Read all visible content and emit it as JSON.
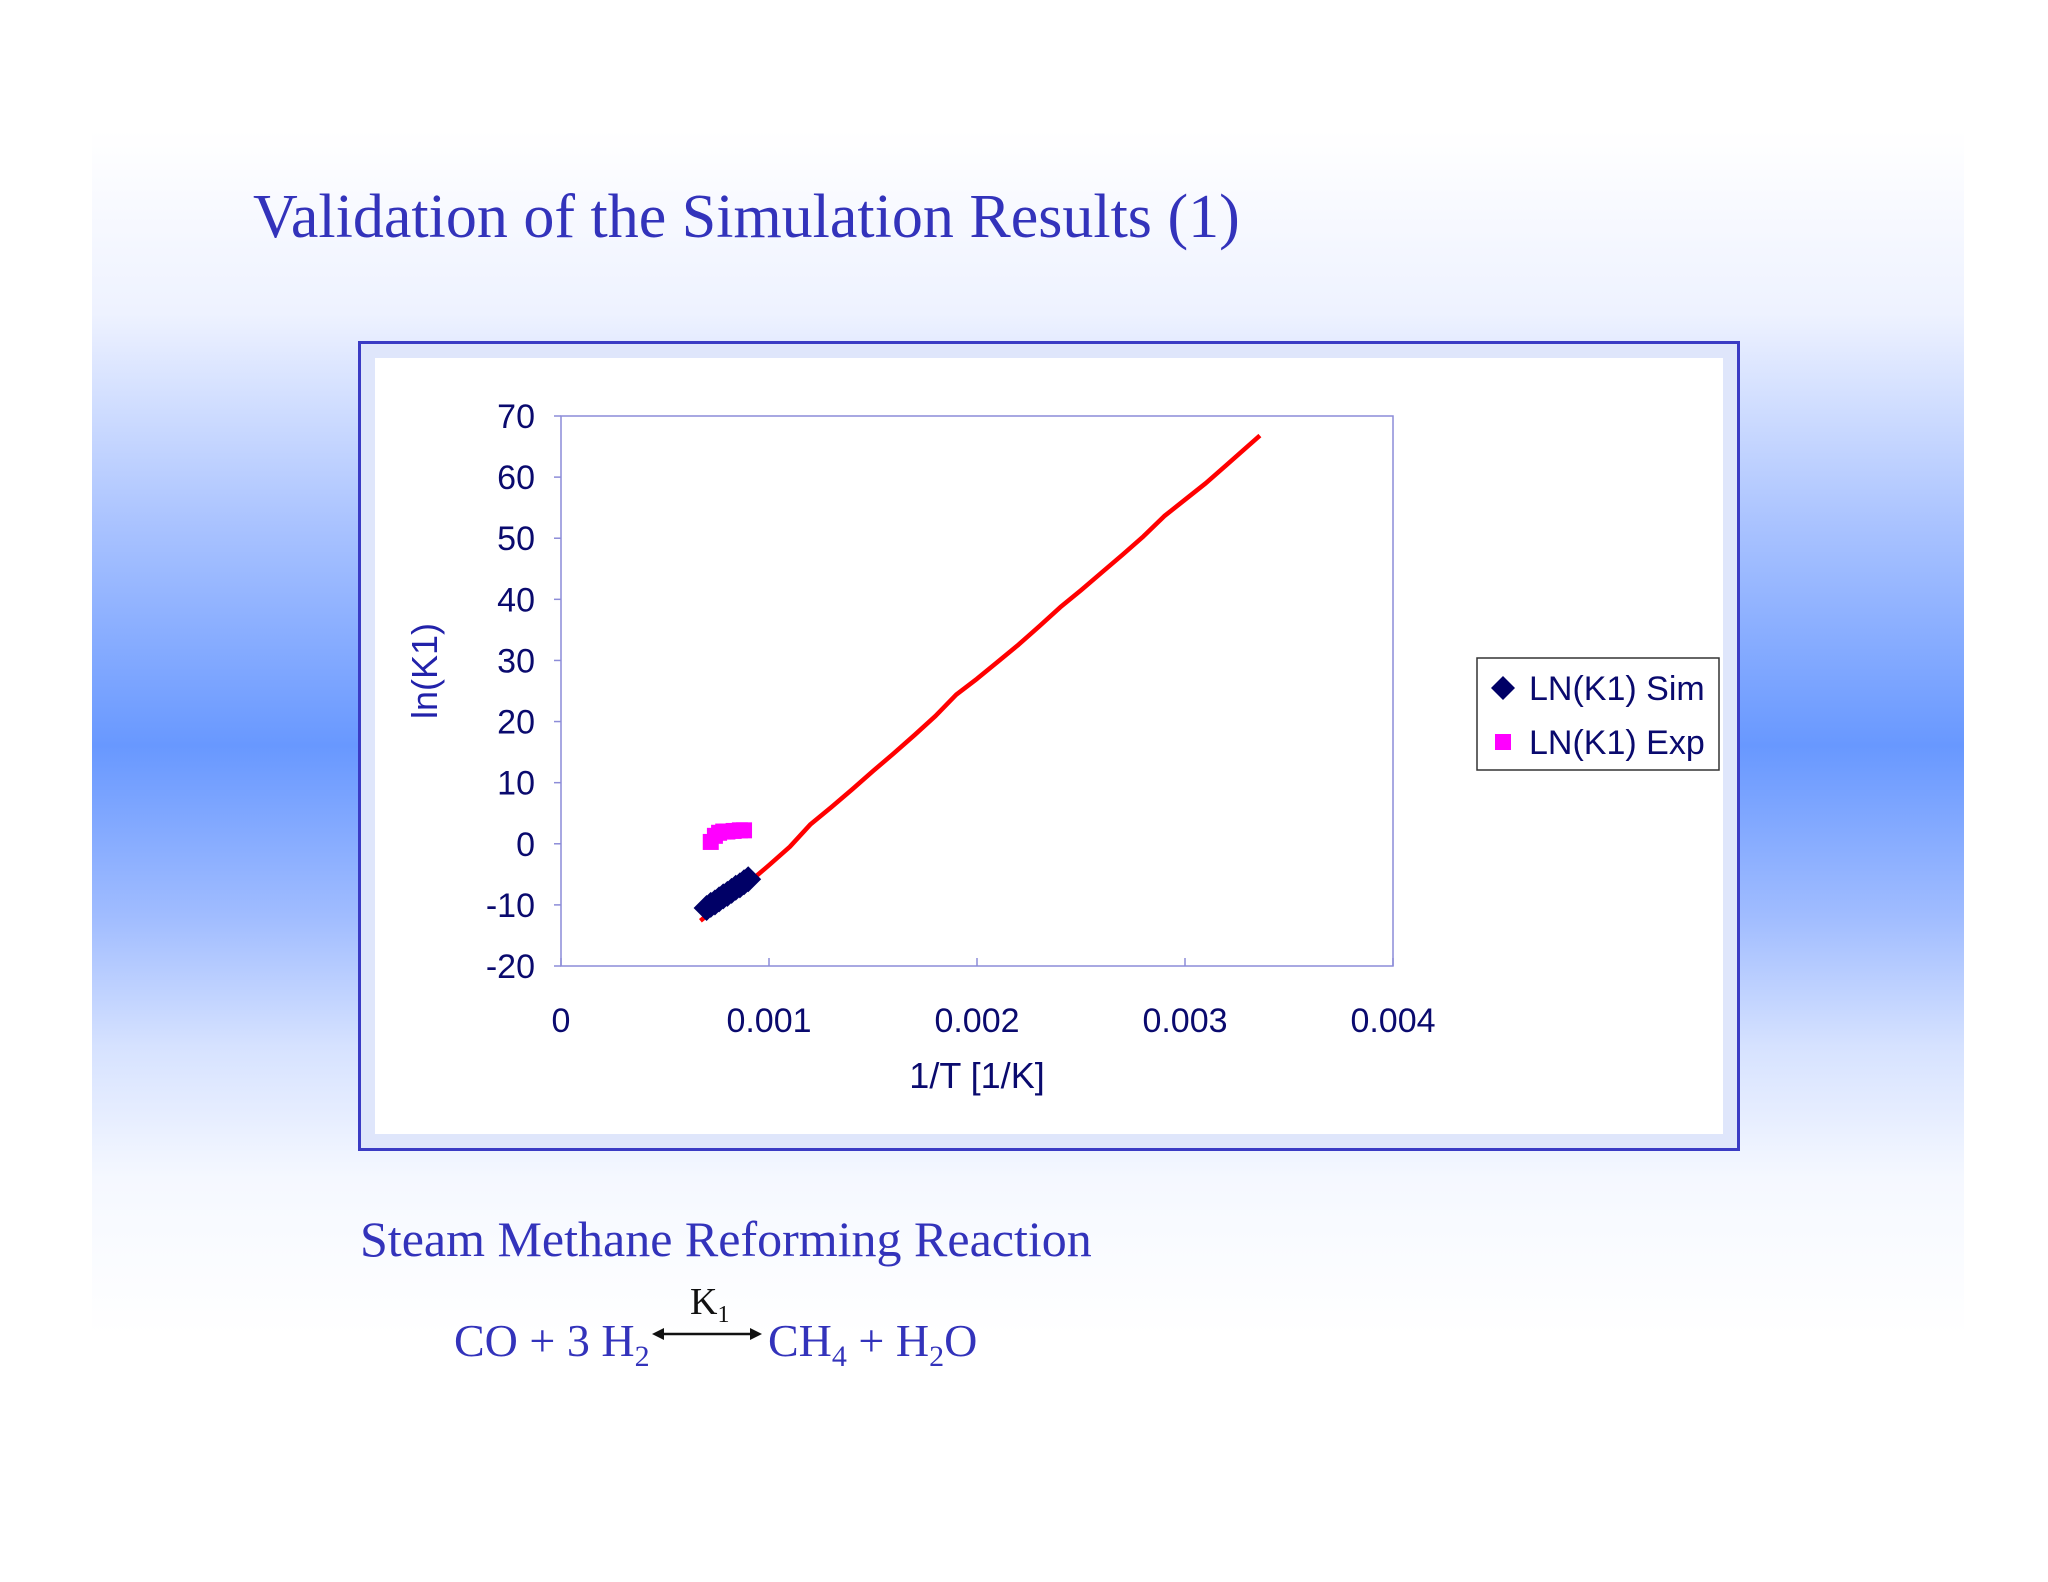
{
  "slide": {
    "title": "Validation of the Simulation Results (1)",
    "subtitle": "Steam Methane Reforming Reaction",
    "equation": {
      "left_text": "CO + 3 H",
      "left_sub": "2",
      "k_label": "K",
      "k_sub": "1",
      "right_text_1": "CH",
      "right_sub_1": "4",
      "right_text_2": " + H",
      "right_sub_2": "2",
      "right_text_3": "O"
    }
  },
  "chart_data": {
    "type": "scatter",
    "title": "",
    "xlabel": "1/T [1/K]",
    "ylabel": "ln(K1)",
    "xlim": [
      0,
      0.004
    ],
    "ylim": [
      -20,
      70
    ],
    "x_ticks": [
      "0",
      "0.001",
      "0.002",
      "0.003",
      "0.004"
    ],
    "y_ticks": [
      "70",
      "60",
      "50",
      "40",
      "30",
      "20",
      "10",
      "0",
      "-10",
      "-20"
    ],
    "grid": false,
    "legend_position": "right",
    "series": [
      {
        "name": "LN(K1) Sim",
        "marker": "diamond",
        "color": "#000066",
        "points": [
          [
            0.0007,
            -10.5
          ],
          [
            0.00072,
            -10.0
          ],
          [
            0.00074,
            -9.6
          ],
          [
            0.00076,
            -9.1
          ],
          [
            0.00078,
            -8.6
          ],
          [
            0.0008,
            -8.2
          ],
          [
            0.00082,
            -7.7
          ],
          [
            0.00084,
            -7.2
          ],
          [
            0.00086,
            -6.8
          ],
          [
            0.00088,
            -6.3
          ],
          [
            0.0009,
            -5.8
          ]
        ]
      },
      {
        "name": "LN(K1) Exp",
        "marker": "square",
        "color": "#ff00ff",
        "points": [
          [
            0.00072,
            0.3
          ],
          [
            0.00074,
            1.3
          ],
          [
            0.00076,
            1.8
          ],
          [
            0.00078,
            2.0
          ],
          [
            0.0008,
            2.0
          ],
          [
            0.00083,
            2.1
          ],
          [
            0.00086,
            2.2
          ],
          [
            0.00088,
            2.2
          ]
        ]
      },
      {
        "name": "",
        "type": "line",
        "color": "#ff0000",
        "points": [
          [
            0.00067,
            -12.6
          ],
          [
            0.0008,
            -9.0
          ],
          [
            0.0009,
            -6.4
          ],
          [
            0.001,
            -3.5
          ],
          [
            0.0011,
            -0.5
          ],
          [
            0.0012,
            3.2
          ],
          [
            0.0013,
            6.0
          ],
          [
            0.0014,
            8.9
          ],
          [
            0.0015,
            11.9
          ],
          [
            0.0016,
            14.8
          ],
          [
            0.0017,
            17.8
          ],
          [
            0.0018,
            20.9
          ],
          [
            0.0019,
            24.4
          ],
          [
            0.002,
            27.0
          ],
          [
            0.0021,
            29.8
          ],
          [
            0.0022,
            32.6
          ],
          [
            0.0023,
            35.6
          ],
          [
            0.0024,
            38.7
          ],
          [
            0.0025,
            41.5
          ],
          [
            0.0026,
            44.4
          ],
          [
            0.0027,
            47.3
          ],
          [
            0.0028,
            50.3
          ],
          [
            0.0029,
            53.6
          ],
          [
            0.003,
            56.3
          ],
          [
            0.0031,
            59.0
          ],
          [
            0.0032,
            62.0
          ],
          [
            0.0033,
            65.0
          ],
          [
            0.00336,
            66.8
          ]
        ]
      }
    ]
  }
}
